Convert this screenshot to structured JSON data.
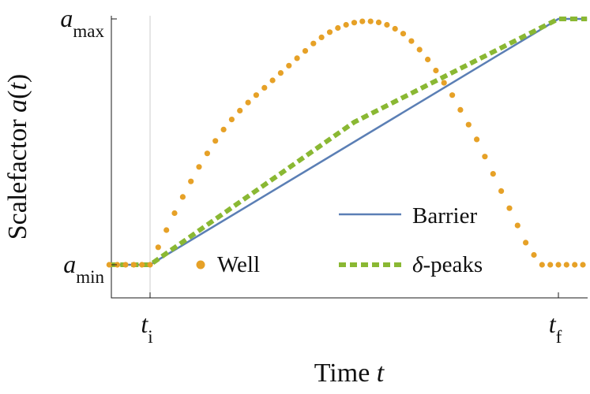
{
  "chart_data": {
    "type": "line",
    "xlabel": "Time t",
    "ylabel": "Scalefactor a(t)",
    "x_ticks": [
      {
        "base": "t",
        "sub": "i",
        "x": 0.0
      },
      {
        "base": "t",
        "sub": "f",
        "x": 1.0
      }
    ],
    "y_ticks": [
      {
        "base": "a",
        "sub": "min",
        "y": 0.0
      },
      {
        "base": "a",
        "sub": "max",
        "y": 1.0
      }
    ],
    "xlim": [
      -0.1,
      1.07
    ],
    "ylim": [
      -0.13,
      1.0
    ],
    "series": [
      {
        "name": "Barrier",
        "legend_label": "Barrier",
        "style": "solid",
        "color": "#5b7fb5",
        "x": [
          -0.1,
          0.0,
          1.0,
          1.07
        ],
        "y": [
          0.0,
          0.0,
          1.0,
          1.0
        ]
      },
      {
        "name": "δ-peaks",
        "legend_label": "δ-peaks",
        "style": "dashed",
        "color": "#8ab833",
        "x": [
          -0.1,
          0.0,
          0.5,
          1.0,
          1.07
        ],
        "y": [
          0.0,
          0.0,
          0.58,
          1.0,
          1.0
        ]
      },
      {
        "name": "Well",
        "legend_label": "Well",
        "style": "dotted",
        "color": "#e6a127",
        "x": [
          -0.1,
          -0.08,
          -0.06,
          -0.04,
          -0.02,
          0.0,
          0.02,
          0.04,
          0.06,
          0.08,
          0.1,
          0.12,
          0.14,
          0.16,
          0.18,
          0.2,
          0.22,
          0.24,
          0.26,
          0.28,
          0.3,
          0.32,
          0.34,
          0.36,
          0.38,
          0.4,
          0.42,
          0.44,
          0.46,
          0.48,
          0.5,
          0.52,
          0.54,
          0.56,
          0.58,
          0.6,
          0.62,
          0.64,
          0.66,
          0.68,
          0.7,
          0.72,
          0.74,
          0.76,
          0.78,
          0.8,
          0.82,
          0.84,
          0.86,
          0.88,
          0.9,
          0.92,
          0.94,
          0.96,
          0.98,
          1.0,
          1.02,
          1.04,
          1.06
        ],
        "y": [
          0.0,
          0.0,
          0.0,
          0.0,
          0.0,
          0.0,
          0.071,
          0.141,
          0.21,
          0.276,
          0.339,
          0.398,
          0.453,
          0.504,
          0.55,
          0.591,
          0.627,
          0.66,
          0.69,
          0.72,
          0.75,
          0.78,
          0.81,
          0.84,
          0.87,
          0.9,
          0.925,
          0.946,
          0.963,
          0.976,
          0.985,
          0.99,
          0.99,
          0.986,
          0.976,
          0.96,
          0.94,
          0.91,
          0.875,
          0.835,
          0.79,
          0.74,
          0.69,
          0.63,
          0.57,
          0.51,
          0.44,
          0.37,
          0.3,
          0.23,
          0.16,
          0.09,
          0.04,
          0.0,
          0.0,
          0.0,
          0.0,
          0.0,
          0.0
        ]
      }
    ],
    "legend": {
      "placement": "lower-center"
    },
    "grid": false
  }
}
